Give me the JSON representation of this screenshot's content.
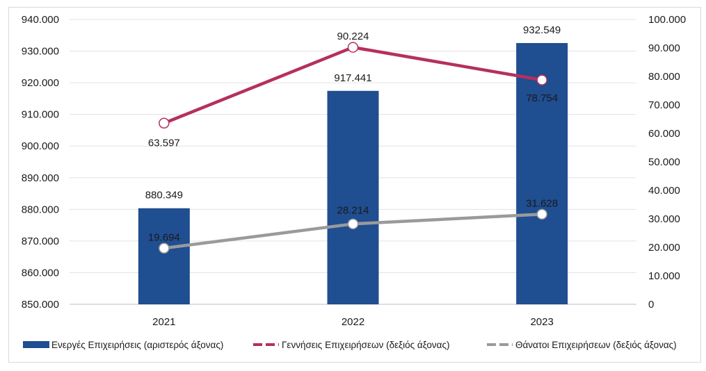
{
  "chart_data": {
    "type": "bar+line",
    "categories": [
      "2021",
      "2022",
      "2023"
    ],
    "left_axis": {
      "ylim": [
        850000,
        940000
      ],
      "ticks": [
        "850.000",
        "860.000",
        "870.000",
        "880.000",
        "890.000",
        "900.000",
        "910.000",
        "920.000",
        "930.000",
        "940.000"
      ]
    },
    "right_axis": {
      "ylim": [
        0,
        100000
      ],
      "ticks": [
        "0",
        "10.000",
        "20.000",
        "30.000",
        "40.000",
        "50.000",
        "60.000",
        "70.000",
        "80.000",
        "90.000",
        "100.000"
      ]
    },
    "series": [
      {
        "name": "Ενεργές Επιχειρήσεις (αριστερός άξονας)",
        "kind": "bar",
        "axis": "left",
        "color": "#1f4e91",
        "values": [
          880349,
          917441,
          932549
        ],
        "labels": [
          "880.349",
          "917.441",
          "932.549"
        ]
      },
      {
        "name": "Γεννήσεις Επιχειρήσεων (δεξιός άξονας)",
        "kind": "line",
        "axis": "right",
        "color": "#b5305f",
        "values": [
          63597,
          90224,
          78754
        ],
        "labels": [
          "63.597",
          "90.224",
          "78.754"
        ]
      },
      {
        "name": "Θάνατοι Επιχειρήσεων (δεξιός άξονας)",
        "kind": "line",
        "axis": "right",
        "color": "#9a9a9a",
        "values": [
          19694,
          28214,
          31628
        ],
        "labels": [
          "19.694",
          "28.214",
          "31.628"
        ]
      }
    ],
    "grid": true,
    "legend_position": "bottom"
  }
}
